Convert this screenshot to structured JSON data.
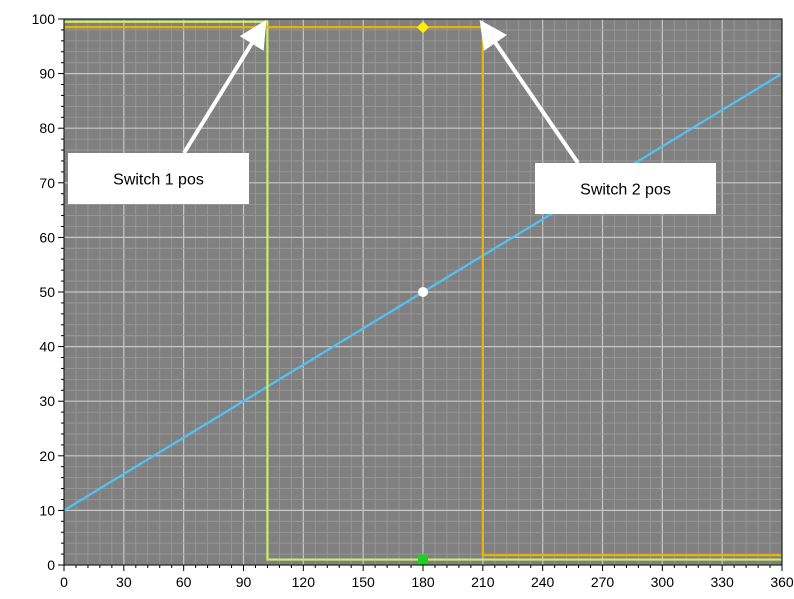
{
  "chart_data": {
    "type": "line",
    "title": "",
    "xlabel": "",
    "ylabel": "",
    "xlim": [
      0,
      360
    ],
    "ylim": [
      0,
      100
    ],
    "x_ticks": [
      0,
      30,
      60,
      90,
      120,
      150,
      180,
      210,
      240,
      270,
      300,
      330,
      360
    ],
    "y_ticks": [
      0,
      10,
      20,
      30,
      40,
      50,
      60,
      70,
      80,
      90,
      100
    ],
    "grid": true,
    "background_color": "#808080",
    "series": [
      {
        "color": "#4fc3f7",
        "x": [
          0,
          360
        ],
        "y": [
          10,
          90
        ],
        "marker": {
          "x": 180,
          "y": 50,
          "color": "#ffffff"
        }
      },
      {
        "color": "#ccee66",
        "x": [
          0,
          102,
          102,
          360
        ],
        "y": [
          99.5,
          99.5,
          1,
          1
        ],
        "marker": {
          "x": 180,
          "y": 1,
          "color": "#22cc22"
        }
      },
      {
        "color": "#f0b400",
        "x": [
          0,
          210,
          210,
          360
        ],
        "y": [
          98.5,
          98.5,
          1.8,
          1.8
        ],
        "marker": {
          "x": 180,
          "y": 98.5,
          "color": "#ffee00"
        }
      }
    ],
    "annotations": [
      {
        "text": "Switch 1 pos",
        "points_to": {
          "x": 100,
          "y": 99
        }
      },
      {
        "text": "Switch 2 pos",
        "points_to": {
          "x": 210,
          "y": 99
        }
      }
    ]
  }
}
